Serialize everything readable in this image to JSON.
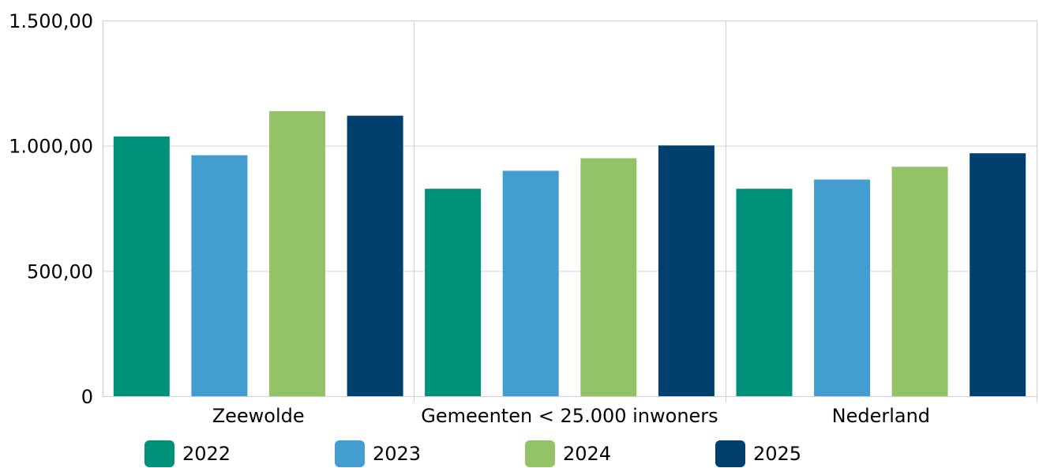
{
  "chart_data": {
    "type": "bar",
    "categories": [
      "Zeewolde",
      "Gemeenten < 25.000 inwoners",
      "Nederland"
    ],
    "series": [
      {
        "name": "2022",
        "color": "#00917a",
        "values": [
          1037,
          828,
          828
        ]
      },
      {
        "name": "2023",
        "color": "#439dd1",
        "values": [
          962,
          900,
          865
        ]
      },
      {
        "name": "2024",
        "color": "#94c267",
        "values": [
          1138,
          950,
          916
        ]
      },
      {
        "name": "2025",
        "color": "#003f6e",
        "values": [
          1120,
          1001,
          970
        ]
      }
    ],
    "y_ticks": [
      "0",
      "500,00",
      "1.000,00",
      "1.500,00"
    ],
    "y_tick_values": [
      0,
      500,
      1000,
      1500
    ],
    "ylim": [
      0,
      1500
    ],
    "grid": true,
    "legend_position": "bottom",
    "title": "",
    "xlabel": "",
    "ylabel": ""
  }
}
